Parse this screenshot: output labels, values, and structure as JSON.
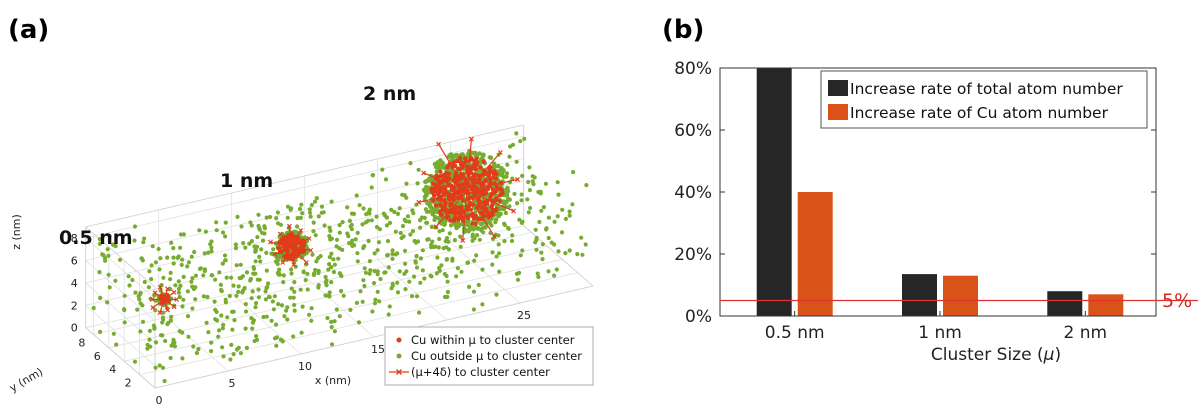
{
  "colors": {
    "green": "#77ac30",
    "red": "#e03c1c",
    "black": "#262626",
    "orange": "#d95319",
    "ref_line": "#e03030",
    "grid": "#e0e0e0"
  },
  "chart_data": [
    {
      "panel_label": "(a)",
      "type": "scatter",
      "dimensions": 3,
      "xlabel": "x (nm)",
      "ylabel": "y (nm)",
      "zlabel": "z (nm)",
      "xlim": [
        0,
        30
      ],
      "ylim": [
        0,
        9
      ],
      "zlim": [
        0,
        9
      ],
      "xticks": [
        "0",
        "5",
        "10",
        "15",
        "20",
        "25"
      ],
      "yticks": [
        "2",
        "4",
        "6",
        "8"
      ],
      "zticks": [
        "0",
        "2",
        "4",
        "6",
        "8"
      ],
      "grid": true,
      "clusters": [
        {
          "label": "0.5 nm",
          "diameter_nm": 0.5,
          "center": [
            3,
            4.5,
            4.3
          ]
        },
        {
          "label": "1 nm",
          "diameter_nm": 1,
          "center": [
            12,
            5,
            6
          ]
        },
        {
          "label": "2 nm",
          "diameter_nm": 2,
          "center": [
            24,
            5,
            7.3
          ]
        }
      ],
      "background_points": "uniformly scattered Cu atoms (green)",
      "legend": {
        "position": "bottom-right",
        "entries": [
          {
            "label": "Cu within μ to cluster center",
            "marker": "dot",
            "color": "#e03c1c"
          },
          {
            "label": "Cu outside μ to cluster center",
            "marker": "dot",
            "color": "#77ac30"
          },
          {
            "label": "(μ+4δ) to cluster center",
            "marker": "line-x",
            "color": "#e03c1c"
          }
        ]
      }
    },
    {
      "panel_label": "(b)",
      "type": "bar",
      "categories": [
        "0.5 nm",
        "1 nm",
        "2 nm"
      ],
      "xlabel_main": "Cluster Size (",
      "xlabel_symbol": "μ",
      "xlabel_close": ")",
      "ylabel": "",
      "ylim": [
        0,
        80
      ],
      "yticks": [
        "0%",
        "20%",
        "40%",
        "60%",
        "80%"
      ],
      "series": [
        {
          "name": "Increase rate of total atom number",
          "values": [
            80,
            13.5,
            8
          ],
          "color": "#262626"
        },
        {
          "name": "Increase rate of Cu atom number",
          "values": [
            40,
            13,
            7
          ],
          "color": "#d95319"
        }
      ],
      "reference_line": {
        "value": 5,
        "label": "5%",
        "color": "#e03030"
      },
      "legend_position": "top-right",
      "grid": false
    }
  ]
}
